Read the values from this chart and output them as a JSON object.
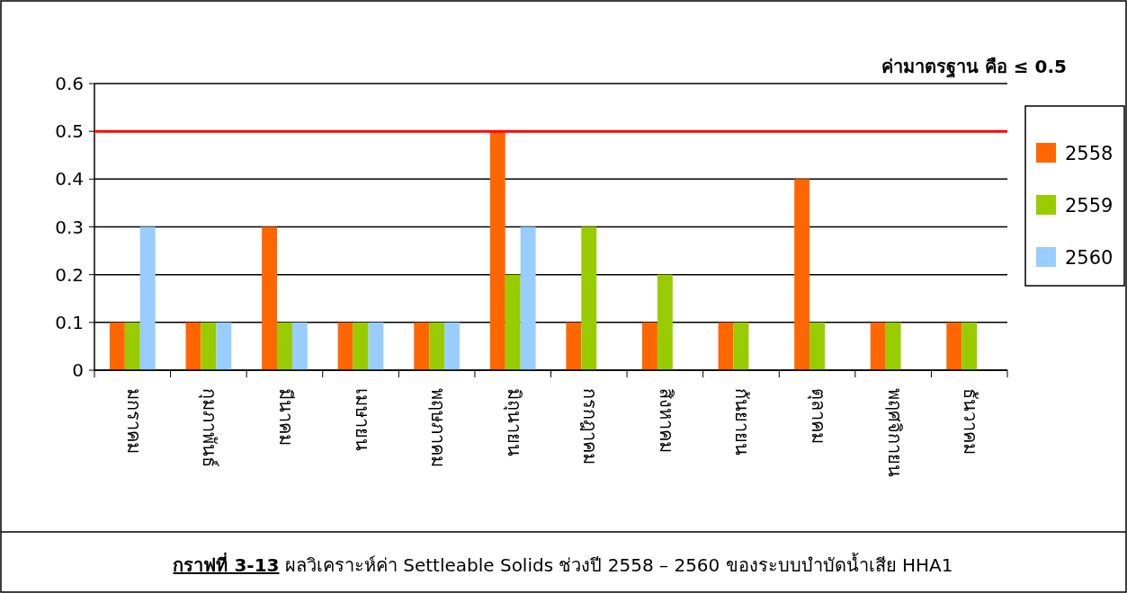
{
  "chart_data": {
    "type": "bar",
    "categories": [
      "มกราคม",
      "กุมภาพันธ์",
      "มีนาคม",
      "เมษายน",
      "พฤษภาคม",
      "มิถุนายน",
      "กรกฎาคม",
      "สิงหาคม",
      "กันยายน",
      "ตุลาคม",
      "พฤศจิกายน",
      "ธันวาคม"
    ],
    "series": [
      {
        "name": "2558",
        "color": "#ff6600",
        "values": [
          0.1,
          0.1,
          0.3,
          0.1,
          0.1,
          0.5,
          0.1,
          0.1,
          0.1,
          0.4,
          0.1,
          0.1
        ]
      },
      {
        "name": "2559",
        "color": "#99cc00",
        "values": [
          0.1,
          0.1,
          0.1,
          0.1,
          0.1,
          0.2,
          0.3,
          0.2,
          0.1,
          0.1,
          0.1,
          0.1
        ]
      },
      {
        "name": "2560",
        "color": "#99ccff",
        "values": [
          0.3,
          0.1,
          0.1,
          0.1,
          0.1,
          0.3,
          null,
          null,
          null,
          null,
          null,
          null
        ]
      }
    ],
    "ylim": [
      0,
      0.6
    ],
    "yticks": [
      0,
      0.1,
      0.2,
      0.3,
      0.4,
      0.5,
      0.6
    ],
    "grid": "y",
    "legend": "right",
    "ref_lines": [
      {
        "axis": "y",
        "value": 0.5,
        "color": "#ff0000"
      }
    ],
    "annotations": [
      "ค่ามาตรฐาน คือ ≤ 0.5",
      "**กราฟที่ 3-13** ผลวิเคราะห์ค่า Settleable Solids ช่วงปี 2558 – 2560 ของระบบบำบัดน้ำเสีย HHA1"
    ]
  }
}
